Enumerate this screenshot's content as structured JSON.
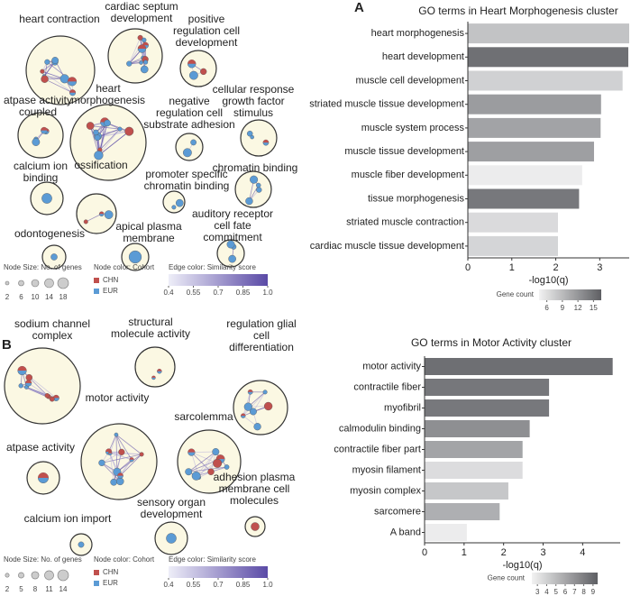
{
  "panels": [
    "A",
    "B"
  ],
  "networks": [
    {
      "clusters": [
        {
          "label": [
            "heart contraction"
          ]
        },
        {
          "label": [
            "cardiac septum",
            "development"
          ]
        },
        {
          "label": [
            "positive",
            "regulation cell",
            "development"
          ]
        },
        {
          "label": [
            "atpase activity",
            "coupled"
          ]
        },
        {
          "label": [
            "heart",
            "morphogenesis"
          ]
        },
        {
          "label": [
            "negative",
            "regulation cell",
            "substrate adhesion"
          ]
        },
        {
          "label": [
            "cellular response",
            "growth factor",
            "stimulus"
          ]
        },
        {
          "label": [
            "calcium ion",
            "binding"
          ]
        },
        {
          "label": [
            "ossification"
          ]
        },
        {
          "label": [
            "promoter specific",
            "chromatin binding"
          ]
        },
        {
          "label": [
            "chromatin binding"
          ]
        },
        {
          "label": [
            "odontogenesis"
          ]
        },
        {
          "label": [
            "apical plasma",
            "membrane"
          ]
        },
        {
          "label": [
            "auditory receptor",
            "cell fate",
            "commitment"
          ]
        }
      ],
      "legend": {
        "size_title": "Node Size: No. of genes",
        "sizes": [
          2,
          6,
          10,
          14,
          18
        ],
        "color_title": "Node color: Cohort",
        "cohorts": [
          {
            "name": "CHN",
            "color": "#c0504d"
          },
          {
            "name": "EUR",
            "color": "#5b9bd5"
          }
        ],
        "edge_title": "Edge color: Similarity score",
        "edge_lim": [
          0.4,
          1.0
        ],
        "edge_ticks": [
          0.4,
          0.55,
          0.7,
          0.85,
          {
            "value": 1,
            "label": "1.0"
          }
        ],
        "edge_colors": [
          "#eeeef8",
          "#5a4aa6"
        ]
      }
    },
    {
      "clusters": [
        {
          "label": [
            "sodium channel",
            "complex"
          ]
        },
        {
          "label": [
            "structural",
            "molecule activity"
          ]
        },
        {
          "label": [
            "regulation glial",
            "cell",
            "differentiation"
          ]
        },
        {
          "label": [
            "motor activity"
          ]
        },
        {
          "label": [
            "sarcolemma"
          ]
        },
        {
          "label": [
            "atpase activity"
          ]
        },
        {
          "label": [
            "adhesion plasma",
            "membrane cell",
            "molecules"
          ]
        },
        {
          "label": [
            "sensory organ",
            "development"
          ]
        },
        {
          "label": [
            "calcium ion import"
          ]
        }
      ],
      "legend": {
        "size_title": "Node Size: No. of genes",
        "sizes": [
          2,
          5,
          8,
          11,
          14
        ],
        "color_title": "Node color: Cohort",
        "cohorts": [
          {
            "name": "CHN",
            "color": "#c0504d"
          },
          {
            "name": "EUR",
            "color": "#5b9bd5"
          }
        ],
        "edge_title": "Edge color: Similarity score",
        "edge_lim": [
          0.4,
          1.0
        ],
        "edge_ticks": [
          0.4,
          0.55,
          0.7,
          0.85,
          {
            "value": 1,
            "label": "1.0"
          }
        ],
        "edge_colors": [
          "#eeeef8",
          "#5a4aa6"
        ]
      }
    }
  ],
  "chart_data": [
    {
      "type": "bar",
      "orientation": "horizontal",
      "title": "GO terms in Heart Morphogenesis cluster",
      "categories": [
        "heart morphogenesis",
        "heart development",
        "muscle cell development",
        "striated muscle tissue development",
        "muscle system process",
        "muscle tissue development",
        "muscle fiber development",
        "tissue morphogenesis",
        "striated muscle contraction",
        "cardiac muscle tissue development"
      ],
      "values": [
        3.67,
        3.65,
        3.52,
        3.03,
        3.02,
        2.87,
        2.6,
        2.53,
        2.05,
        2.05
      ],
      "colors": [
        "#c2c3c5",
        "#6f7074",
        "#d0d1d3",
        "#9b9c9f",
        "#a2a3a6",
        "#9e9fa2",
        "#ececed",
        "#77787c",
        "#dadadc",
        "#d4d5d7"
      ],
      "xlabel": "-log10(q)",
      "xlim": [
        0,
        3.67
      ],
      "xticks": [
        0,
        1,
        2,
        3
      ],
      "colorbar": {
        "title": "Gene count",
        "lim": [
          4.5,
          16.5
        ],
        "ticks": [
          6,
          9,
          12,
          15
        ],
        "colors": [
          "#f2f2f2",
          "#5e5f63"
        ]
      }
    },
    {
      "type": "bar",
      "orientation": "horizontal",
      "title": "GO terms in Motor Activity cluster",
      "categories": [
        "motor activity",
        "contractile fiber",
        "myofibril",
        "calmodulin binding",
        "contractile fiber part",
        "myosin filament",
        "myosin complex",
        "sarcomere",
        "A band"
      ],
      "values": [
        4.76,
        3.15,
        3.15,
        2.66,
        2.48,
        2.48,
        2.12,
        1.9,
        1.07
      ],
      "colors": [
        "#6e6f73",
        "#76777b",
        "#77787c",
        "#8e8f92",
        "#a3a4a7",
        "#dcdcde",
        "#c6c7c9",
        "#aeafb2",
        "#ececed"
      ],
      "xlabel": "-log10(q)",
      "xlim": [
        0,
        4.95
      ],
      "xticks": [
        0,
        1,
        2,
        3,
        4
      ],
      "colorbar": {
        "title": "Gene count",
        "lim": [
          2.4,
          9.5
        ],
        "ticks": [
          3,
          4,
          5,
          6,
          7,
          8,
          9
        ],
        "colors": [
          "#f2f2f2",
          "#5e5f63"
        ]
      }
    }
  ]
}
